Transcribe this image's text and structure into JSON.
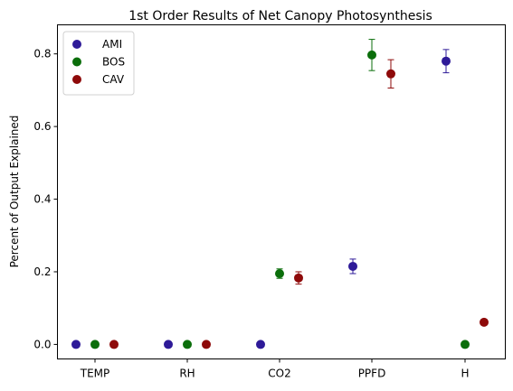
{
  "chart_data": {
    "type": "scatter",
    "title": "1st Order Results of Net Canopy Photosynthesis",
    "xlabel": "",
    "ylabel": "Percent of Output Explained",
    "categories": [
      "TEMP",
      "RH",
      "CO2",
      "PPFD",
      "H"
    ],
    "ylim": [
      -0.04,
      0.88
    ],
    "yticks": [
      "0.0",
      "0.2",
      "0.4",
      "0.6",
      "0.8"
    ],
    "grid": false,
    "legend_position": "top-left",
    "series": [
      {
        "name": "AMI",
        "color": "#2e1a98",
        "values": [
          0.0,
          0.0,
          0.0,
          0.215,
          0.78
        ],
        "errors": [
          0.0,
          0.0,
          0.0,
          0.02,
          0.032
        ]
      },
      {
        "name": "BOS",
        "color": "#0b6e0b",
        "values": [
          0.0,
          0.0,
          0.195,
          0.797,
          0.0
        ],
        "errors": [
          0.0,
          0.0,
          0.013,
          0.043,
          0.0
        ]
      },
      {
        "name": "CAV",
        "color": "#8e0a0a",
        "values": [
          0.0,
          0.0,
          0.183,
          0.745,
          0.061
        ],
        "errors": [
          0.0,
          0.0,
          0.017,
          0.039,
          0.008
        ]
      }
    ]
  }
}
